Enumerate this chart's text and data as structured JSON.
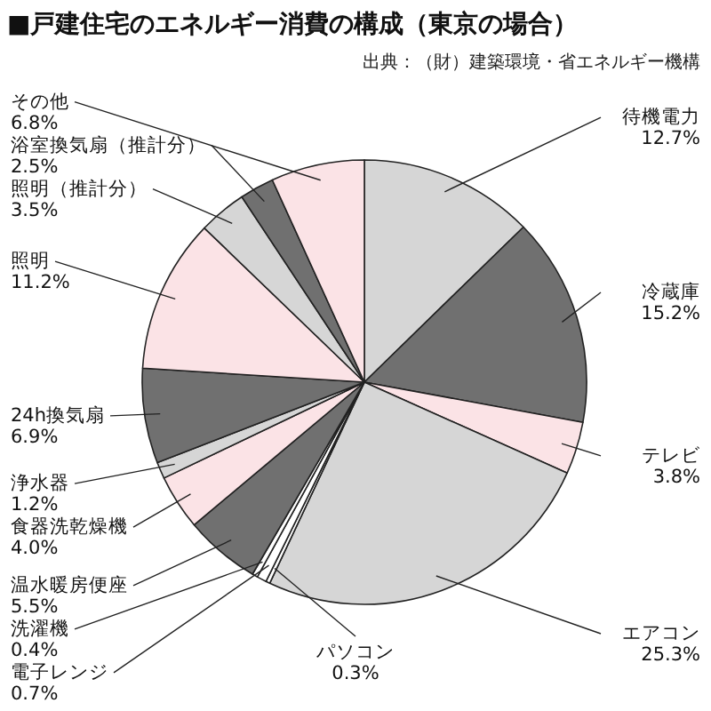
{
  "chart_data": {
    "type": "pie",
    "title": "■戸建住宅のエネルギー消費の構成（東京の場合）",
    "annotations": [
      "出典：（財）建築環境・省エネルギー機構"
    ],
    "categories": [
      "待機電力",
      "冷蔵庫",
      "テレビ",
      "エアコン",
      "パソコン",
      "電子レンジ",
      "洗濯機",
      "温水暖房便座",
      "食器洗乾燥機",
      "浄水器",
      "24h換気扇",
      "照明",
      "照明（推計分）",
      "浴室換気扇（推計分）",
      "その他"
    ],
    "values": [
      12.7,
      15.2,
      3.8,
      25.3,
      0.3,
      0.7,
      0.4,
      5.5,
      4.0,
      1.2,
      6.9,
      11.2,
      3.5,
      2.5,
      6.8
    ],
    "colors": [
      "#d6d6d6",
      "#707070",
      "#fbe3e6",
      "#d6d6d6",
      "#ffffff",
      "#ffffff",
      "#ffffff",
      "#707070",
      "#fbe3e6",
      "#d6d6d6",
      "#707070",
      "#fbe3e6",
      "#d6d6d6",
      "#707070",
      "#fbe3e6"
    ],
    "value_labels": [
      "12.7%",
      "15.2%",
      "3.8%",
      "25.3%",
      "0.3%",
      "0.7%",
      "0.4%",
      "5.5%",
      "4.0%",
      "1.2%",
      "6.9%",
      "11.2%",
      "3.5%",
      "2.5%",
      "6.8%"
    ]
  }
}
